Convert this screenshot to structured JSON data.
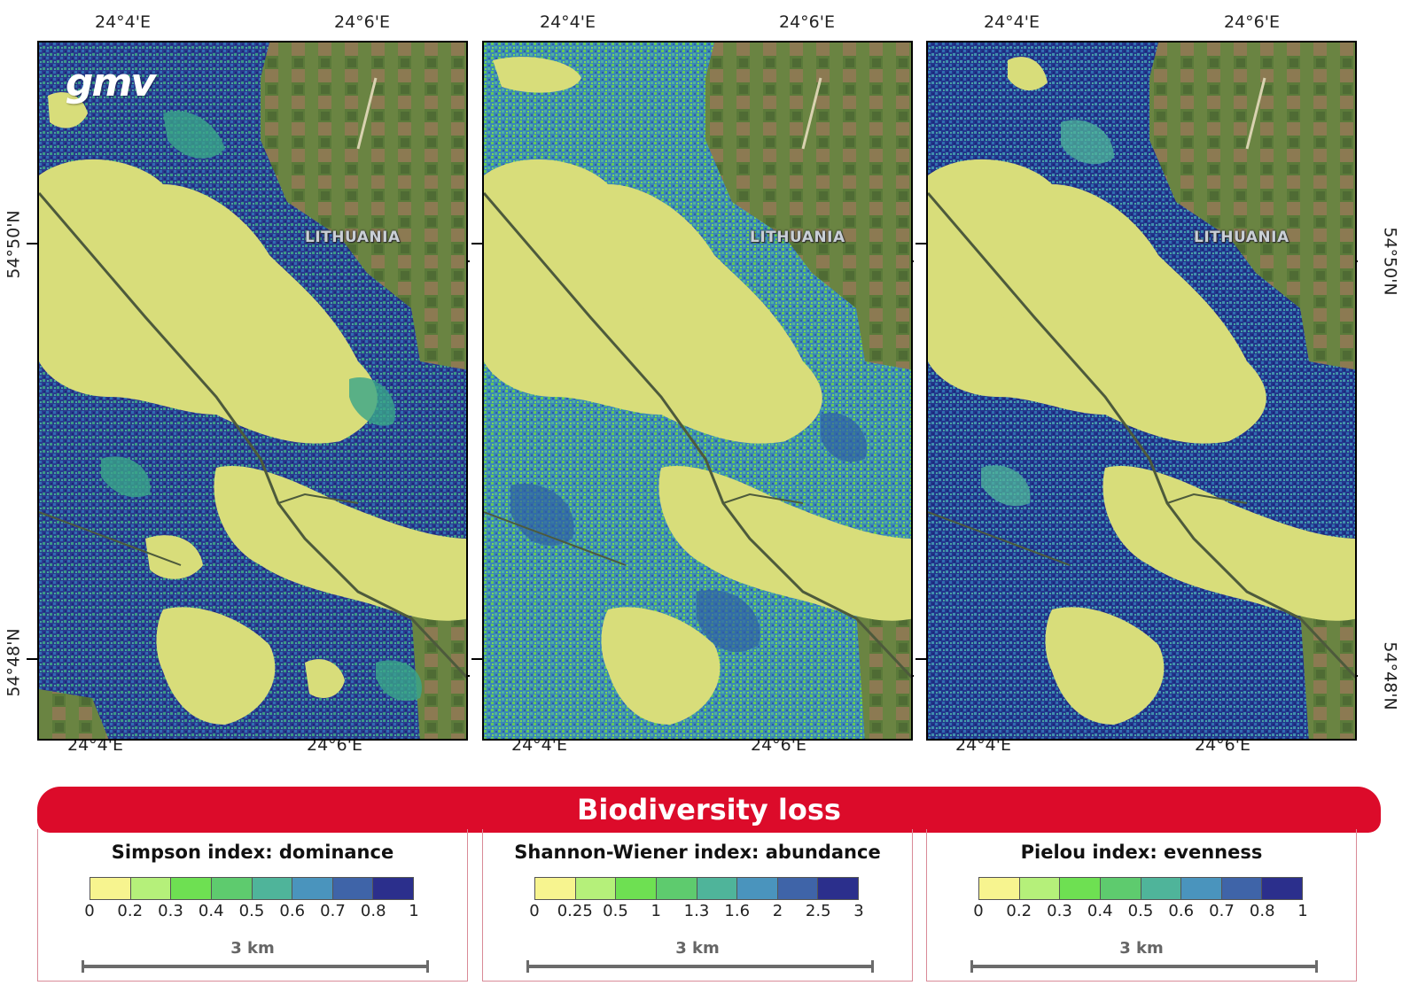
{
  "figure_title": "Biodiversity loss",
  "country_label": "LITHUANIA",
  "logo_text": "gmv",
  "coords": {
    "lon_a": "24°4'E",
    "lon_b": "24°6'E",
    "lat_top": "54°50'N",
    "lat_bottom": "54°48'N"
  },
  "panels": [
    {
      "name": "Simpson index: dominance",
      "colorbar_ticks": [
        "0",
        "0.2",
        "0.3",
        "0.4",
        "0.5",
        "0.6",
        "0.7",
        "0.8",
        "1"
      ],
      "scale_label": "3 km"
    },
    {
      "name": "Shannon-Wiener index: abundance",
      "colorbar_ticks": [
        "0",
        "0.25",
        "0.5",
        "1",
        "1.3",
        "1.6",
        "2",
        "2.5",
        "3"
      ],
      "scale_label": "3 km"
    },
    {
      "name": "Pielou index: evenness",
      "colorbar_ticks": [
        "0",
        "0.2",
        "0.3",
        "0.4",
        "0.5",
        "0.6",
        "0.7",
        "0.8",
        "1"
      ],
      "scale_label": "3 km"
    }
  ],
  "colorbar_colors": [
    "#f7f48f",
    "#b5f07a",
    "#6ee052",
    "#5ecb6e",
    "#4fb49a",
    "#4a94bd",
    "#3f64a8",
    "#2b2f8c"
  ],
  "colors": {
    "banner": "#dc0b2a",
    "pale_yellow": "#d8dd7a",
    "navy": "#1f2f85",
    "blue": "#2f6fb0",
    "teal": "#3aa58a",
    "green": "#63c95a",
    "field_green": "#5b7a3a",
    "field_brown": "#8c7a52"
  }
}
